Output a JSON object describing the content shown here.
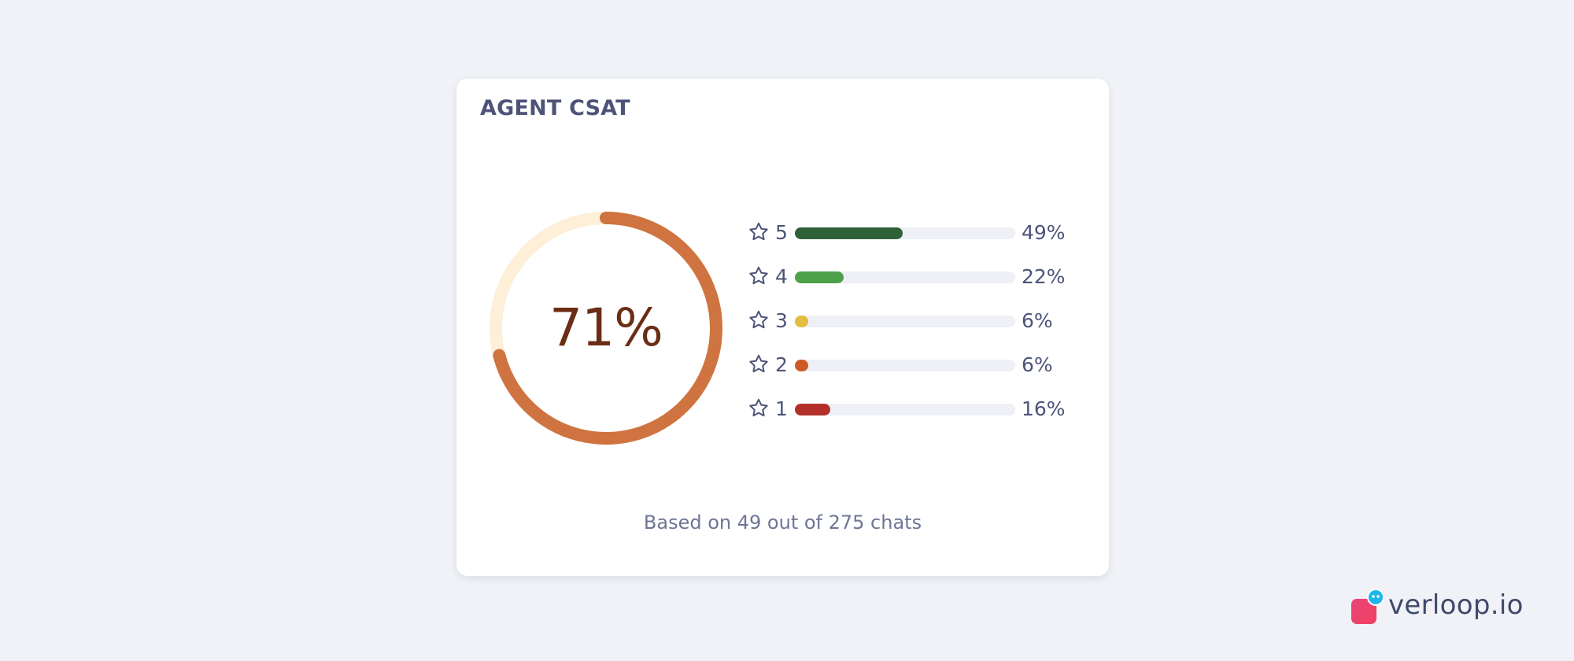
{
  "card": {
    "title": "AGENT CSAT",
    "score": {
      "label": "71%",
      "fraction": 0.71,
      "colors": {
        "progress": "#cf7440",
        "track": "#fdefd8",
        "text": "#6b2e14"
      }
    },
    "ratings": [
      {
        "stars": "5",
        "percent_label": "49%",
        "fraction": 0.49,
        "color": "#2e6139",
        "icon": "star-outline-icon"
      },
      {
        "stars": "4",
        "percent_label": "22%",
        "fraction": 0.22,
        "color": "#4ca14a",
        "icon": "star-outline-icon"
      },
      {
        "stars": "3",
        "percent_label": "6%",
        "fraction": 0.06,
        "color": "#e2bd3f",
        "icon": "star-outline-icon"
      },
      {
        "stars": "2",
        "percent_label": "6%",
        "fraction": 0.06,
        "color": "#cc5a24",
        "icon": "star-outline-icon"
      },
      {
        "stars": "1",
        "percent_label": "16%",
        "fraction": 0.16,
        "color": "#b3302a",
        "icon": "star-outline-icon"
      }
    ],
    "footer": "Based on 49 out of 275 chats"
  },
  "brand": {
    "name": "verloop.io",
    "icon": "verloop-logo-icon"
  }
}
